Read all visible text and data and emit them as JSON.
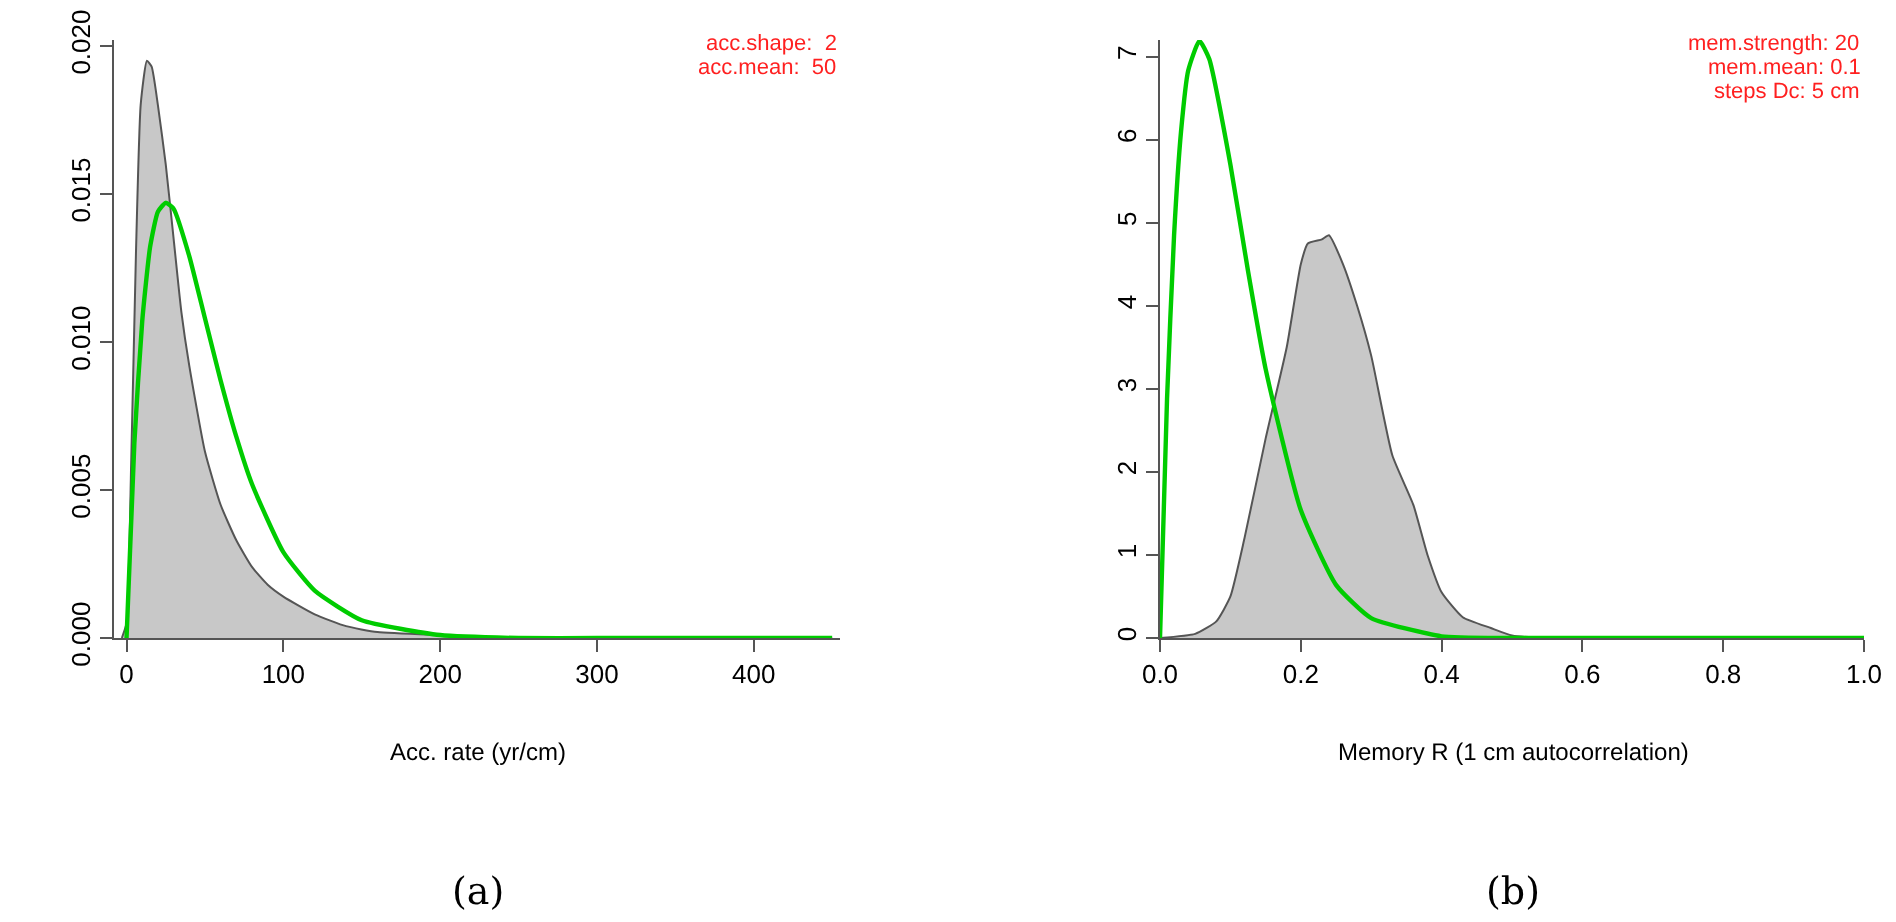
{
  "chart_data": [
    {
      "type": "area",
      "title": "(a)",
      "xlabel": "Acc. rate (yr/cm)",
      "annotations": [
        "acc.shape:  2",
        "acc.mean:  50"
      ],
      "xlim": [
        -8,
        455
      ],
      "ylim": [
        0,
        0.0202
      ],
      "xticks": [
        0,
        100,
        200,
        300,
        400
      ],
      "yticks": [
        {
          "value": 0,
          "label": "0.000"
        },
        {
          "value": 0.005,
          "label": "0.005"
        },
        {
          "value": 0.01,
          "label": "0.010"
        },
        {
          "value": 0.015,
          "label": "0.015"
        },
        {
          "value": 0.02,
          "label": "0.020"
        }
      ],
      "series": [
        {
          "type": "area",
          "color": "#c8c8c8",
          "x": [
            -3,
            0,
            3,
            6,
            9,
            13,
            16,
            20,
            25,
            30,
            35,
            40,
            50,
            60,
            70,
            80,
            90,
            100,
            120,
            140,
            160,
            200,
            250,
            300,
            450
          ],
          "values": [
            0,
            0.0005,
            0.006,
            0.013,
            0.018,
            0.0195,
            0.0193,
            0.018,
            0.016,
            0.0135,
            0.011,
            0.0092,
            0.0063,
            0.0045,
            0.0033,
            0.0024,
            0.0018,
            0.0014,
            0.0008,
            0.0004,
            0.0002,
            0.0001,
            0,
            0,
            0
          ]
        },
        {
          "type": "line",
          "color": "#00cc00",
          "x": [
            0,
            5,
            10,
            15,
            20,
            25,
            30,
            40,
            50,
            60,
            70,
            80,
            100,
            120,
            150,
            200,
            250,
            300,
            450
          ],
          "values": [
            0,
            0.0066,
            0.0107,
            0.0132,
            0.0144,
            0.0147,
            0.0145,
            0.0129,
            0.0108,
            0.0087,
            0.0068,
            0.0052,
            0.0029,
            0.0016,
            0.0006,
            0.0001,
            0,
            0,
            0
          ]
        }
      ]
    },
    {
      "type": "area",
      "title": "(b)",
      "xlabel": "Memory R (1 cm autocorrelation)",
      "annotations": [
        "mem.strength: 20",
        "mem.mean: 0.1",
        "steps Dc: 5 cm"
      ],
      "xlim": [
        0,
        1
      ],
      "ylim": [
        0,
        7.2
      ],
      "yticks": [
        0,
        1,
        2,
        3,
        4,
        5,
        6,
        7
      ],
      "xticks": [
        {
          "value": 0,
          "label": "0.0"
        },
        {
          "value": 0.2,
          "label": "0.2"
        },
        {
          "value": 0.4,
          "label": "0.4"
        },
        {
          "value": 0.6,
          "label": "0.6"
        },
        {
          "value": 0.8,
          "label": "0.8"
        },
        {
          "value": 1,
          "label": "1.0"
        }
      ],
      "series": [
        {
          "type": "area",
          "color": "#c8c8c8",
          "x": [
            0,
            0.05,
            0.08,
            0.1,
            0.12,
            0.15,
            0.18,
            0.2,
            0.21,
            0.23,
            0.24,
            0.26,
            0.28,
            0.3,
            0.33,
            0.36,
            0.38,
            0.4,
            0.43,
            0.47,
            0.5,
            0.55,
            1
          ],
          "values": [
            0,
            0.05,
            0.2,
            0.5,
            1.2,
            2.4,
            3.5,
            4.5,
            4.75,
            4.8,
            4.85,
            4.5,
            4,
            3.4,
            2.2,
            1.6,
            1,
            0.55,
            0.25,
            0.12,
            0.03,
            0,
            0
          ]
        },
        {
          "type": "line",
          "color": "#00cc00",
          "x": [
            0,
            0.01,
            0.02,
            0.03,
            0.04,
            0.056,
            0.07,
            0.1,
            0.125,
            0.15,
            0.2,
            0.25,
            0.3,
            0.4,
            0.5,
            1
          ],
          "values": [
            0,
            2.88,
            4.85,
            6.11,
            6.83,
            7.19,
            6.97,
            5.7,
            4.42,
            3.24,
            1.54,
            0.64,
            0.24,
            0.02,
            0,
            0
          ]
        }
      ]
    }
  ]
}
